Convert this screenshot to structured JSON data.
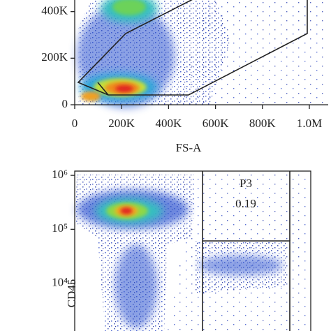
{
  "charts": [
    {
      "type": "scatter",
      "xlabel": "FS-A",
      "xlim": [
        0,
        1010000
      ],
      "ylim": [
        0,
        450000
      ],
      "xticks": [
        {
          "value": 0,
          "label": "0"
        },
        {
          "value": 200000,
          "label": "200K"
        },
        {
          "value": 400000,
          "label": "400K"
        },
        {
          "value": 600000,
          "label": "600K"
        },
        {
          "value": 800000,
          "label": "800K"
        },
        {
          "value": 1000000,
          "label": "1.0M"
        }
      ],
      "yticks": [
        {
          "value": 0,
          "label": "0"
        },
        {
          "value": 200000,
          "label": "200K"
        },
        {
          "value": 400000,
          "label": "400K"
        }
      ]
    },
    {
      "type": "scatter",
      "ylabel": "CD45",
      "log_y": true,
      "ylim": [
        1300,
        1200000
      ],
      "yticks": [
        {
          "value": 10000,
          "label": "10⁴"
        },
        {
          "value": 100000,
          "label": "10⁵"
        },
        {
          "value": 1000000,
          "label": "10⁶"
        }
      ],
      "gate_name": "P3",
      "gate_value_label": "0.19"
    }
  ]
}
